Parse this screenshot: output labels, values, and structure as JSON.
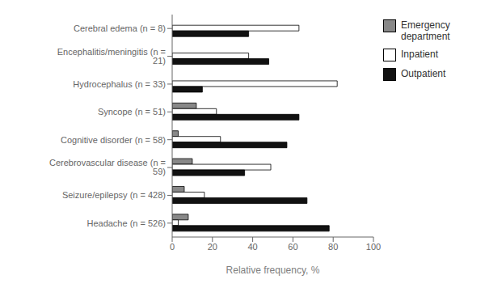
{
  "chart_data": {
    "type": "bar",
    "orientation": "horizontal",
    "categories": [
      "Cerebral edema (n = 8)",
      "Encephalitis/meningitis (n = 21)",
      "Hydrocephalus (n = 33)",
      "Syncope (n = 51)",
      "Cognitive disorder (n = 58)",
      "Cerebrovascular disease (n = 59)",
      "Seizure/epilepsy (n = 428)",
      "Headache (n = 526)"
    ],
    "series": [
      {
        "name": "Emergency\ndepartment",
        "color": "#888888",
        "values": [
          0,
          0,
          0,
          12,
          3,
          10,
          6,
          8
        ]
      },
      {
        "name": "Inpatient",
        "color": "#ffffff",
        "values": [
          63,
          38,
          82,
          22,
          24,
          49,
          16,
          3
        ]
      },
      {
        "name": "Outpatient",
        "color": "#111111",
        "values": [
          38,
          48,
          15,
          63,
          57,
          36,
          67,
          78
        ]
      }
    ],
    "xlabel": "Relative frequency, %",
    "xlim": [
      0,
      100
    ],
    "xticks": [
      0,
      20,
      40,
      60,
      80,
      100
    ],
    "legend": "upper right",
    "grid": false
  }
}
